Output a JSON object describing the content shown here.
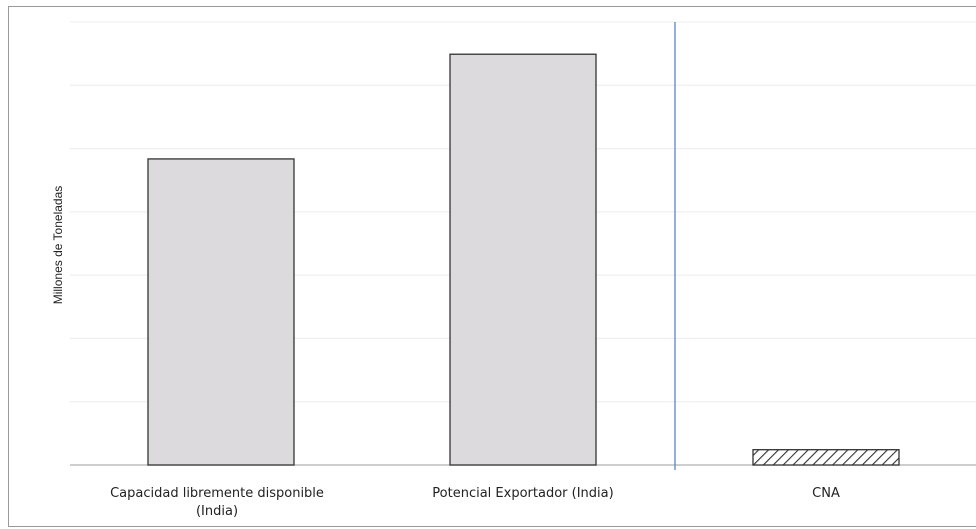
{
  "chart_data": {
    "type": "bar",
    "title": "",
    "xlabel": "",
    "ylabel": "Millones de Toneladas",
    "categories": [
      [
        "Capacidad libremente disponible",
        "(India)"
      ],
      [
        "Potencial Exportador (India)"
      ],
      [
        "CNA"
      ]
    ],
    "values": [
      38,
      51,
      1.9
    ],
    "ylim": [
      0,
      55
    ],
    "grid": true,
    "separator_after_category": 2,
    "bar_styles": [
      "solid",
      "solid",
      "hatched"
    ],
    "colors": {
      "bar_fill": "#dcdadc",
      "bar_stroke": "#333333",
      "grid": "#ececec",
      "axis": "#b0b0b0",
      "separator": "#5b84c4",
      "hatch": "#333333"
    }
  }
}
